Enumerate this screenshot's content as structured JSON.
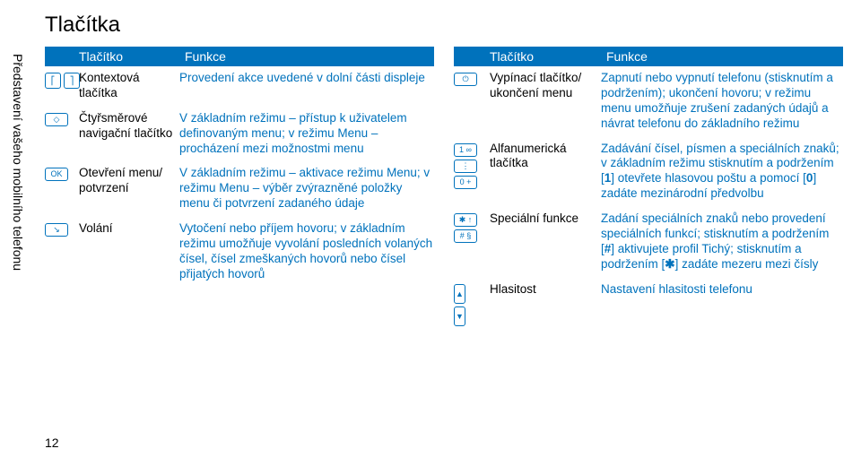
{
  "sideLabel": "Představení vašeho mobilního telefonu",
  "pageNumber": "12",
  "title": "Tlačítka",
  "header": {
    "col1": "Tlačítko",
    "col2": "Funkce"
  },
  "left": [
    {
      "icons": [
        [
          "⎡",
          "⎤"
        ]
      ],
      "name": "Kontextová tlačítka",
      "desc": "Provedení akce uvedené v dolní části displeje"
    },
    {
      "icons": [
        [
          "◇"
        ]
      ],
      "name": "Čtyřsměrové navigační tlačítko",
      "desc": "V základním režimu – přístup k uživatelem definovaným menu; v režimu Menu – procházení mezi možnostmi menu"
    },
    {
      "icons": [
        [
          "OK"
        ]
      ],
      "name": "Otevření menu/ potvrzení",
      "desc": "V základním režimu – aktivace režimu Menu; v režimu Menu – výběr zvýrazněné položky menu či potvrzení zadaného údaje"
    },
    {
      "icons": [
        [
          "↘"
        ]
      ],
      "name": "Volání",
      "desc": "Vytočení nebo příjem hovoru; v základním režimu umožňuje vyvolání posledních volaných čísel, čísel zmeškaných hovorů nebo čísel přijatých hovorů"
    }
  ],
  "right": [
    {
      "icons": [
        [
          "⏻"
        ]
      ],
      "name": "Vypínací tlačítko/ ukončení menu",
      "desc": "Zapnutí nebo vypnutí telefonu (stisknutím a podržením); ukončení hovoru; v režimu menu umožňuje zrušení zadaných údajů a návrat telefonu do základního režimu"
    },
    {
      "icons": [
        [
          "1 ∞"
        ],
        [
          "⋮"
        ],
        [
          "0 +"
        ]
      ],
      "name": "Alfa­numerická tlačítka",
      "desc": "Zadávání čísel, písmen a speciálních znaků; v základním režimu stisknutím a podržením [<b>1</b>] otevřete hlasovou poštu a pomocí [<b>0</b>] zadáte mezinárodní předvolbu"
    },
    {
      "icons": [
        [
          "✱ ↑"
        ],
        [
          "# §"
        ]
      ],
      "name": "Speciální funkce",
      "desc": "Zadání speciálních znaků nebo provedení speciálních funkcí; stisknutím a podržením [<b>#</b>] aktivujete profil Tichý; stisknutím a podržením [<b>✱</b>] zadáte mezeru mezi čísly"
    },
    {
      "icons": [
        [
          "▲",
          "▼"
        ]
      ],
      "name": "Hlasitost",
      "desc": "Nastavení hlasitosti telefonu"
    }
  ]
}
